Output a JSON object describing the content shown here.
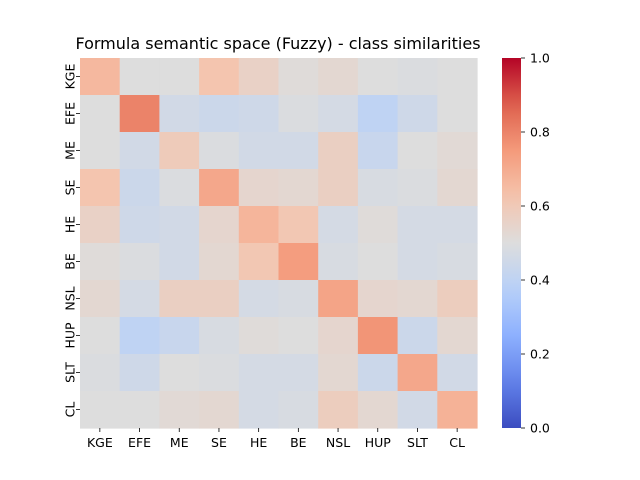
{
  "chart_data": {
    "type": "heatmap",
    "title": "Formula semantic space (Fuzzy) - class similarities",
    "row_labels": [
      "KGE",
      "EFE",
      "ME",
      "SE",
      "HE",
      "BE",
      "NSL",
      "HUP",
      "SLT",
      "CL"
    ],
    "col_labels": [
      "KGE",
      "EFE",
      "ME",
      "SE",
      "HE",
      "BE",
      "NSL",
      "HUP",
      "SLT",
      "CL"
    ],
    "values": [
      [
        0.66,
        0.5,
        0.5,
        0.62,
        0.56,
        0.51,
        0.53,
        0.5,
        0.49,
        0.5
      ],
      [
        0.5,
        0.8,
        0.46,
        0.44,
        0.45,
        0.49,
        0.47,
        0.4,
        0.45,
        0.5
      ],
      [
        0.5,
        0.46,
        0.59,
        0.49,
        0.46,
        0.46,
        0.57,
        0.43,
        0.5,
        0.52
      ],
      [
        0.62,
        0.44,
        0.49,
        0.71,
        0.54,
        0.53,
        0.57,
        0.48,
        0.49,
        0.53
      ],
      [
        0.56,
        0.45,
        0.46,
        0.54,
        0.67,
        0.61,
        0.47,
        0.51,
        0.47,
        0.47
      ],
      [
        0.51,
        0.49,
        0.46,
        0.53,
        0.61,
        0.74,
        0.48,
        0.5,
        0.47,
        0.48
      ],
      [
        0.53,
        0.47,
        0.57,
        0.57,
        0.47,
        0.48,
        0.72,
        0.54,
        0.53,
        0.58
      ],
      [
        0.5,
        0.4,
        0.43,
        0.48,
        0.51,
        0.5,
        0.54,
        0.76,
        0.44,
        0.53
      ],
      [
        0.49,
        0.45,
        0.5,
        0.49,
        0.47,
        0.47,
        0.53,
        0.44,
        0.71,
        0.46
      ],
      [
        0.5,
        0.5,
        0.52,
        0.53,
        0.47,
        0.48,
        0.58,
        0.53,
        0.46,
        0.68
      ]
    ],
    "vmin": 0.0,
    "vmax": 1.0,
    "colormap": "coolwarm",
    "colorbar_ticks": [
      "0.0",
      "0.2",
      "0.4",
      "0.6",
      "0.8",
      "1.0"
    ],
    "colorbar_values": [
      0.0,
      0.2,
      0.4,
      0.6,
      0.8,
      1.0
    ]
  }
}
